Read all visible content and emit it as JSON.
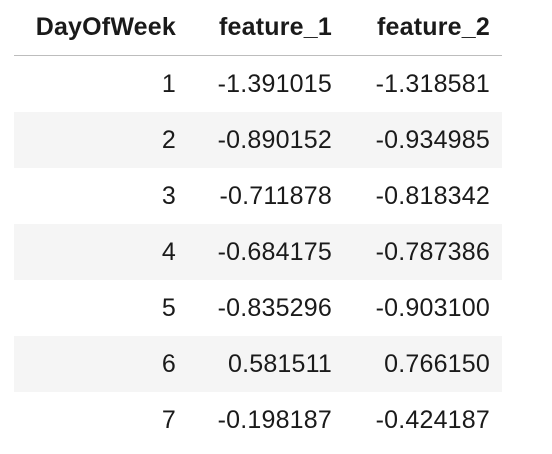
{
  "table": {
    "columns": [
      "DayOfWeek",
      "feature_1",
      "feature_2"
    ],
    "rows": [
      [
        "1",
        "-1.391015",
        "-1.318581"
      ],
      [
        "2",
        "-0.890152",
        "-0.934985"
      ],
      [
        "3",
        "-0.711878",
        "-0.818342"
      ],
      [
        "4",
        "-0.684175",
        "-0.787386"
      ],
      [
        "5",
        "-0.835296",
        "-0.903100"
      ],
      [
        "6",
        "0.581511",
        "0.766150"
      ],
      [
        "7",
        "-0.198187",
        "-0.424187"
      ]
    ]
  }
}
